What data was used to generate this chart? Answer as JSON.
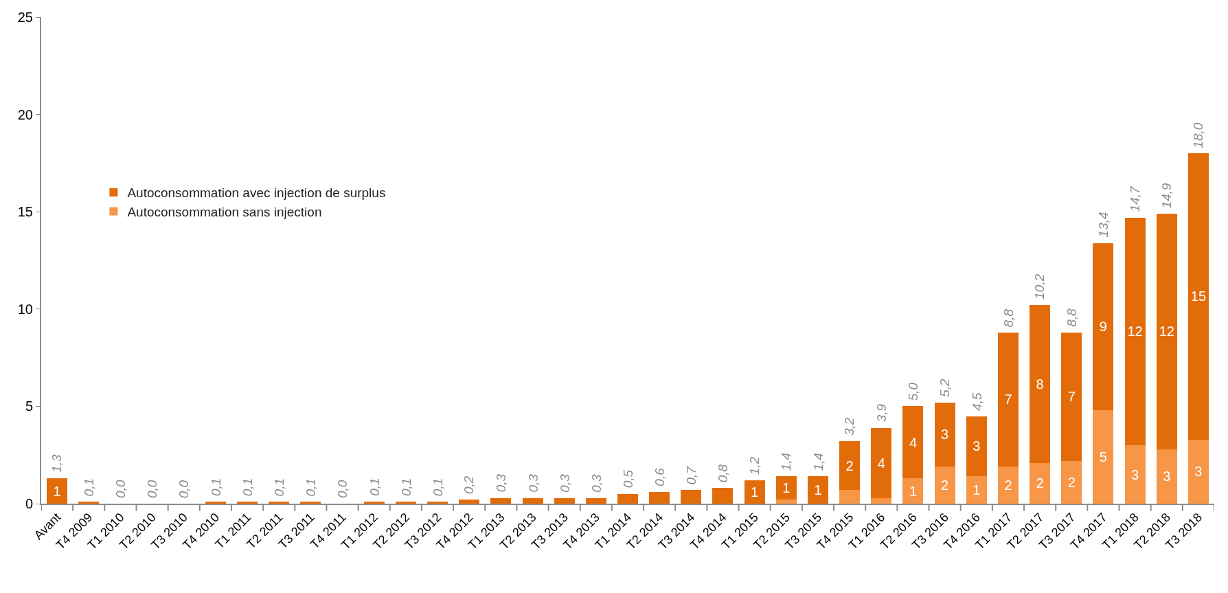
{
  "chart_data": {
    "type": "bar",
    "stacked": true,
    "categories": [
      "Avant",
      "T4 2009",
      "T1 2010",
      "T2 2010",
      "T3 2010",
      "T4 2010",
      "T1 2011",
      "T2 2011",
      "T3 2011",
      "T4 2011",
      "T1 2012",
      "T2 2012",
      "T3 2012",
      "T4 2012",
      "T1 2013",
      "T2 2013",
      "T3 2013",
      "T4 2013",
      "T1 2014",
      "T2 2014",
      "T3 2014",
      "T4 2014",
      "T1 2015",
      "T2 2015",
      "T3 2015",
      "T4 2015",
      "T1 2016",
      "T2 2016",
      "T3 2016",
      "T4 2016",
      "T1 2017",
      "T2 2017",
      "T3 2017",
      "T4 2017",
      "T1 2018",
      "T2 2018",
      "T3 2018"
    ],
    "series": [
      {
        "name": "Autoconsommation sans injection",
        "color": "#f79646",
        "values": [
          0,
          0,
          0,
          0,
          0,
          0,
          0,
          0,
          0,
          0,
          0,
          0,
          0,
          0,
          0,
          0,
          0,
          0,
          0,
          0,
          0,
          0,
          0,
          0.2,
          0,
          0.7,
          0.3,
          1.3,
          1.9,
          1.4,
          1.9,
          2.1,
          2.2,
          4.8,
          3.0,
          2.8,
          3.3
        ],
        "value_labels": [
          null,
          null,
          null,
          null,
          null,
          null,
          null,
          null,
          null,
          null,
          null,
          null,
          null,
          null,
          null,
          null,
          null,
          null,
          null,
          null,
          null,
          null,
          null,
          null,
          null,
          null,
          null,
          "1",
          "2",
          "1",
          "2",
          "2",
          "2",
          "5",
          "3",
          "3",
          "3"
        ]
      },
      {
        "name": "Autoconsommation avec injection de surplus",
        "color": "#e36c0a",
        "values": [
          1.3,
          0.1,
          0,
          0,
          0,
          0.1,
          0.1,
          0.1,
          0.1,
          0,
          0.1,
          0.1,
          0.1,
          0.2,
          0.3,
          0.3,
          0.3,
          0.3,
          0.5,
          0.6,
          0.7,
          0.8,
          1.2,
          1.2,
          1.4,
          2.5,
          3.6,
          3.7,
          3.3,
          3.1,
          6.9,
          8.1,
          6.6,
          8.6,
          11.7,
          12.1,
          14.7
        ],
        "value_labels": [
          "1",
          null,
          null,
          null,
          null,
          null,
          null,
          null,
          null,
          null,
          null,
          null,
          null,
          null,
          null,
          null,
          null,
          null,
          null,
          null,
          null,
          null,
          "1",
          "1",
          "1",
          "2",
          "4",
          "4",
          "3",
          "3",
          "7",
          "8",
          "7",
          "9",
          "12",
          "12",
          "15"
        ]
      }
    ],
    "totals": [
      "1,3",
      "0,1",
      "0,0",
      "0,0",
      "0,0",
      "0,1",
      "0,1",
      "0,1",
      "0,1",
      "0,0",
      "0,1",
      "0,1",
      "0,1",
      "0,2",
      "0,3",
      "0,3",
      "0,3",
      "0,3",
      "0,5",
      "0,6",
      "0,7",
      "0,8",
      "1,2",
      "1,4",
      "1,4",
      "3,2",
      "3,9",
      "5,0",
      "5,2",
      "4,5",
      "8,8",
      "10,2",
      "8,8",
      "13,4",
      "14,7",
      "14,9",
      "18,0"
    ],
    "ylim": [
      0,
      25
    ],
    "yticks": [
      0,
      5,
      10,
      15,
      20,
      25
    ],
    "grid": false,
    "legend": "left"
  }
}
